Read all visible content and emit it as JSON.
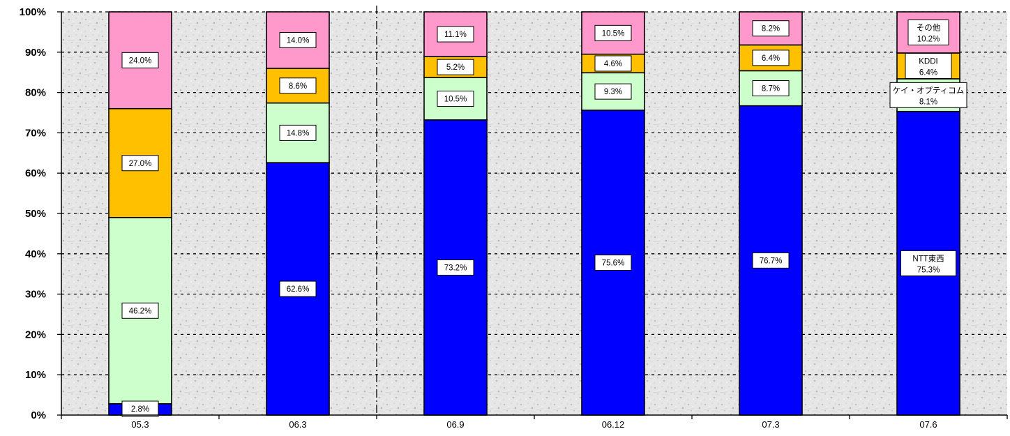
{
  "chart_data": {
    "type": "bar",
    "stacked": true,
    "percent": true,
    "categories": [
      "05.3",
      "06.3",
      "06.9",
      "06.12",
      "07.3",
      "07.6"
    ],
    "ylim": [
      0,
      100
    ],
    "yticks": [
      "0%",
      "10%",
      "20%",
      "30%",
      "40%",
      "50%",
      "60%",
      "70%",
      "80%",
      "90%",
      "100%"
    ],
    "grid": true,
    "separator_after_category": 1,
    "series": [
      {
        "name": "NTT東西",
        "color": "#0000ff",
        "values": [
          2.8,
          62.6,
          73.2,
          75.6,
          76.7,
          75.3
        ],
        "labels": [
          "2.8%",
          "62.6%",
          "73.2%",
          "75.6%",
          "76.7%",
          "75.3%"
        ]
      },
      {
        "name": "ケイ・オプティコム",
        "color": "#ccffcc",
        "values": [
          46.2,
          14.8,
          10.5,
          9.3,
          8.7,
          8.1
        ],
        "labels": [
          "46.2%",
          "14.8%",
          "10.5%",
          "9.3%",
          "8.7%",
          "8.1%"
        ]
      },
      {
        "name": "KDDI",
        "color": "#ffc000",
        "values": [
          27.0,
          8.6,
          5.2,
          4.6,
          6.4,
          6.4
        ],
        "labels": [
          "27.0%",
          "8.6%",
          "5.2%",
          "4.6%",
          "6.4%",
          "6.4%"
        ]
      },
      {
        "name": "その他",
        "color": "#ff99cc",
        "values": [
          24.0,
          14.0,
          11.1,
          10.5,
          8.2,
          10.2
        ],
        "labels": [
          "24.0%",
          "14.0%",
          "11.1%",
          "10.5%",
          "8.2%",
          "10.2%"
        ]
      }
    ],
    "named_labels_category": 5
  }
}
